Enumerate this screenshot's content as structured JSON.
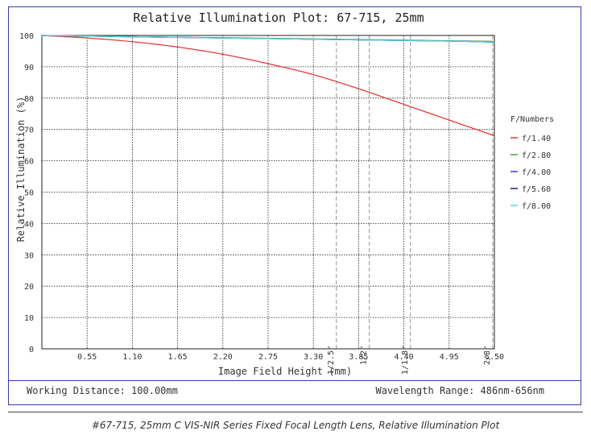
{
  "chart_data": {
    "type": "line",
    "title": "Relative Illumination Plot: 67-715, 25mm",
    "xlabel": "Image Field Height (mm)",
    "ylabel": "Relative Illumination (%)",
    "xlim": [
      0,
      5.5
    ],
    "ylim": [
      0,
      100
    ],
    "xticks": [
      "0.55",
      "1.10",
      "1.65",
      "2.20",
      "2.75",
      "3.30",
      "3.85",
      "4.40",
      "4.95",
      "5.50"
    ],
    "yticks": [
      "0",
      "10",
      "20",
      "30",
      "40",
      "50",
      "60",
      "70",
      "80",
      "90",
      "100"
    ],
    "grid": true,
    "legend_title": "F/Numbers",
    "legend_position": "right",
    "sensor_markers": [
      {
        "label": "1/2.5\"",
        "x": 3.58
      },
      {
        "label": "1/2\"",
        "x": 3.98
      },
      {
        "label": "1/1.8\"",
        "x": 4.48
      },
      {
        "label": "2/3\"",
        "x": 5.48
      }
    ],
    "series": [
      {
        "name": "f/1.40",
        "color": "#e03a3a",
        "x": [
          0,
          0.55,
          1.1,
          1.65,
          2.2,
          2.75,
          3.3,
          3.85,
          4.4,
          4.95,
          5.5
        ],
        "y": [
          100,
          99.2,
          98,
          96.3,
          94,
          91,
          87.5,
          83,
          78,
          73,
          68
        ]
      },
      {
        "name": "f/2.80",
        "color": "#3aa83a",
        "x": [
          0,
          0.55,
          1.1,
          1.65,
          2.2,
          2.75,
          3.3,
          3.85,
          4.4,
          4.95,
          5.5
        ],
        "y": [
          100,
          99.8,
          99.6,
          99.4,
          99.3,
          99.1,
          98.9,
          98.7,
          98.5,
          98.3,
          98.1
        ]
      },
      {
        "name": "f/4.00",
        "color": "#3a3ad0",
        "x": [
          0,
          0.55,
          1.1,
          1.65,
          2.2,
          2.75,
          3.3,
          3.85,
          4.4,
          4.95,
          5.5
        ],
        "y": [
          100,
          99.8,
          99.6,
          99.4,
          99.2,
          99.0,
          98.8,
          98.6,
          98.4,
          98.2,
          97.9
        ]
      },
      {
        "name": "f/5.60",
        "color": "#1a1a7a",
        "x": [
          0,
          0.55,
          1.1,
          1.65,
          2.2,
          2.75,
          3.3,
          3.85,
          4.4,
          4.95,
          5.5
        ],
        "y": [
          100,
          99.8,
          99.6,
          99.4,
          99.2,
          99.0,
          98.8,
          98.6,
          98.4,
          98.2,
          97.9
        ]
      },
      {
        "name": "f/8.00",
        "color": "#5fd3d3",
        "x": [
          0,
          0.55,
          1.1,
          1.65,
          2.2,
          2.75,
          3.3,
          3.85,
          4.4,
          4.95,
          5.5
        ],
        "y": [
          100,
          99.8,
          99.6,
          99.4,
          99.2,
          99.0,
          98.8,
          98.6,
          98.4,
          98.2,
          97.9
        ]
      }
    ]
  },
  "footer": {
    "working_distance": "Working Distance: 100.00mm",
    "wavelength_range": "Wavelength Range: 486nm-656nm"
  },
  "caption": "#67-715, 25mm C VIS-NIR Series Fixed Focal Length Lens, Relative Illumination Plot"
}
